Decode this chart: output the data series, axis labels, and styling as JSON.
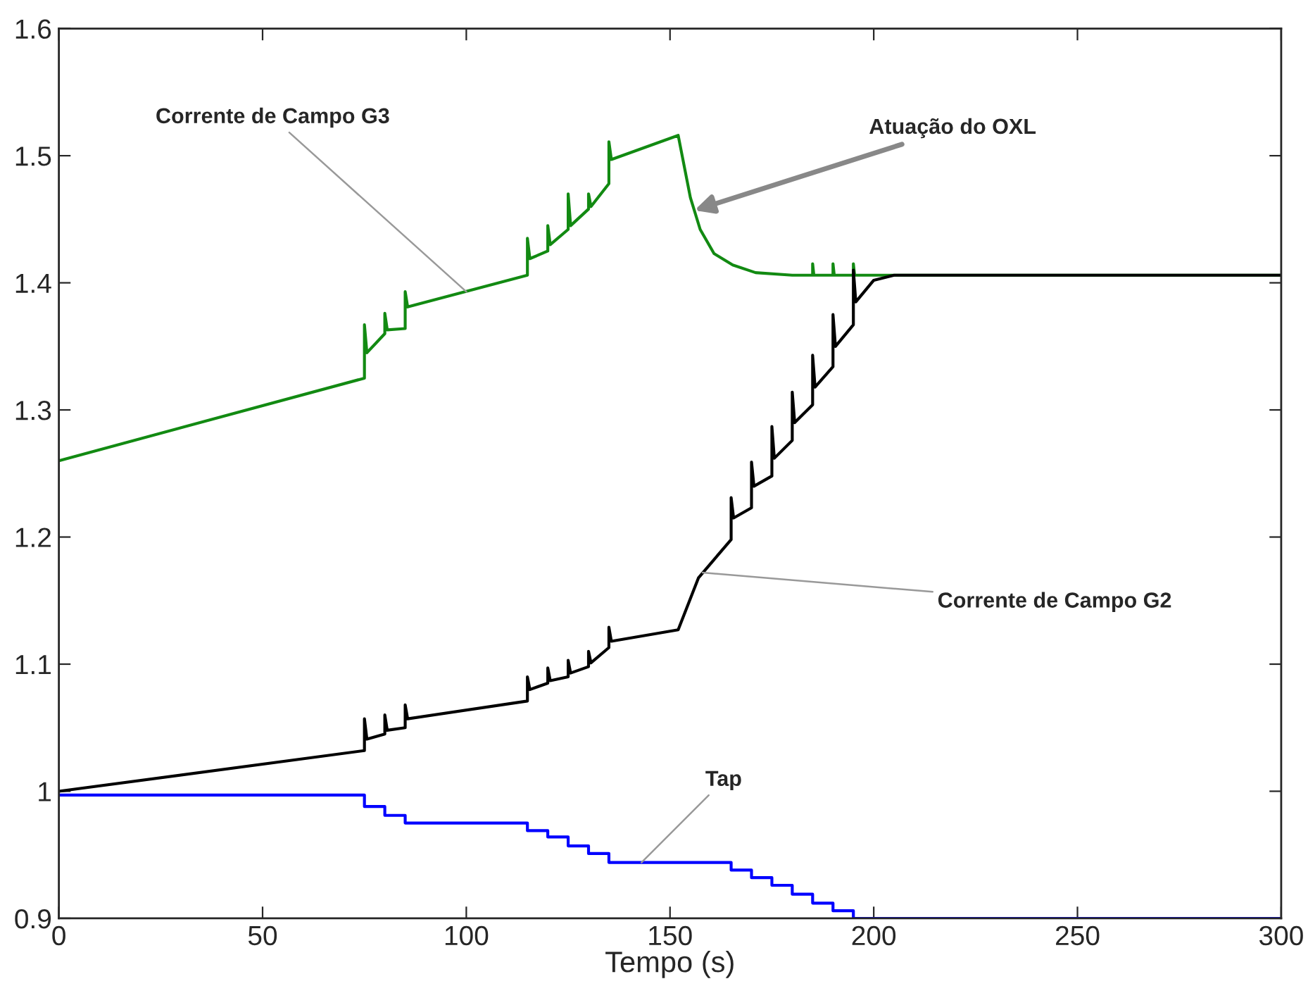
{
  "chart_data": {
    "type": "line",
    "xlabel": "Tempo (s)",
    "xlim": [
      0,
      300
    ],
    "ylim": [
      0.9,
      1.6
    ],
    "xticks": [
      0,
      50,
      100,
      150,
      200,
      250,
      300
    ],
    "yticks": [
      0.9,
      1,
      1.1,
      1.2,
      1.3,
      1.4,
      1.5,
      1.6
    ],
    "grid": false,
    "legend": false,
    "series": [
      {
        "color": "#128a12",
        "x": [
          0,
          75,
          75,
          75.6,
          80,
          80,
          80.6,
          85,
          85,
          85.6,
          115,
          115,
          115.6,
          120,
          120,
          120.6,
          125,
          125,
          125.6,
          130,
          130,
          130.6,
          135,
          135,
          135.6,
          152,
          155,
          157.4,
          160.8,
          165.4,
          171,
          180,
          185,
          185,
          185.3,
          190,
          190,
          190.3,
          195,
          195,
          195.3,
          300
        ],
        "values": [
          1.26,
          1.325,
          1.367,
          1.345,
          1.36,
          1.376,
          1.363,
          1.364,
          1.393,
          1.381,
          1.406,
          1.435,
          1.419,
          1.425,
          1.445,
          1.43,
          1.442,
          1.47,
          1.445,
          1.458,
          1.47,
          1.46,
          1.478,
          1.511,
          1.497,
          1.516,
          1.467,
          1.442,
          1.423,
          1.414,
          1.408,
          1.406,
          1.406,
          1.415,
          1.406,
          1.406,
          1.415,
          1.406,
          1.406,
          1.415,
          1.406,
          1.406
        ]
      },
      {
        "color": "#000000",
        "x": [
          0,
          75,
          75,
          75.6,
          80,
          80,
          80.6,
          85,
          85,
          85.6,
          115,
          115,
          115.6,
          120,
          120,
          120.6,
          125,
          125,
          125.6,
          130,
          130,
          130.6,
          135,
          135,
          135.6,
          152,
          157,
          165,
          165,
          165.6,
          170,
          170,
          170.6,
          175,
          175,
          175.6,
          180,
          180,
          180.6,
          185,
          185,
          185.6,
          190,
          190,
          190.6,
          195,
          195,
          195.6,
          200,
          205,
          300
        ],
        "values": [
          1.0,
          1.032,
          1.057,
          1.041,
          1.045,
          1.06,
          1.048,
          1.05,
          1.068,
          1.057,
          1.071,
          1.09,
          1.08,
          1.085,
          1.097,
          1.087,
          1.09,
          1.103,
          1.093,
          1.098,
          1.11,
          1.101,
          1.113,
          1.129,
          1.118,
          1.127,
          1.168,
          1.198,
          1.231,
          1.215,
          1.223,
          1.259,
          1.24,
          1.248,
          1.287,
          1.262,
          1.276,
          1.314,
          1.29,
          1.304,
          1.343,
          1.318,
          1.334,
          1.375,
          1.35,
          1.367,
          1.41,
          1.385,
          1.402,
          1.406,
          1.406
        ]
      },
      {
        "type": "step",
        "color": "#0000ff",
        "x": [
          0,
          75,
          80,
          85,
          115,
          120,
          125,
          130,
          135,
          165,
          170,
          175,
          180,
          185,
          190,
          195,
          300
        ],
        "values": [
          0.997,
          0.988,
          0.981,
          0.975,
          0.969,
          0.964,
          0.957,
          0.951,
          0.944,
          0.938,
          0.932,
          0.926,
          0.919,
          0.912,
          0.906,
          0.9,
          0.9
        ]
      }
    ],
    "annotations": [
      {
        "text": "Corrente de Campo G3",
        "x": 100,
        "y": 1.393
      },
      {
        "text": "Atuação do OXL",
        "x": 156,
        "y": 1.457
      },
      {
        "text": "Corrente de Campo G2",
        "x": 158,
        "y": 1.172
      },
      {
        "text": "Tap",
        "x": 143,
        "y": 0.944
      }
    ]
  }
}
